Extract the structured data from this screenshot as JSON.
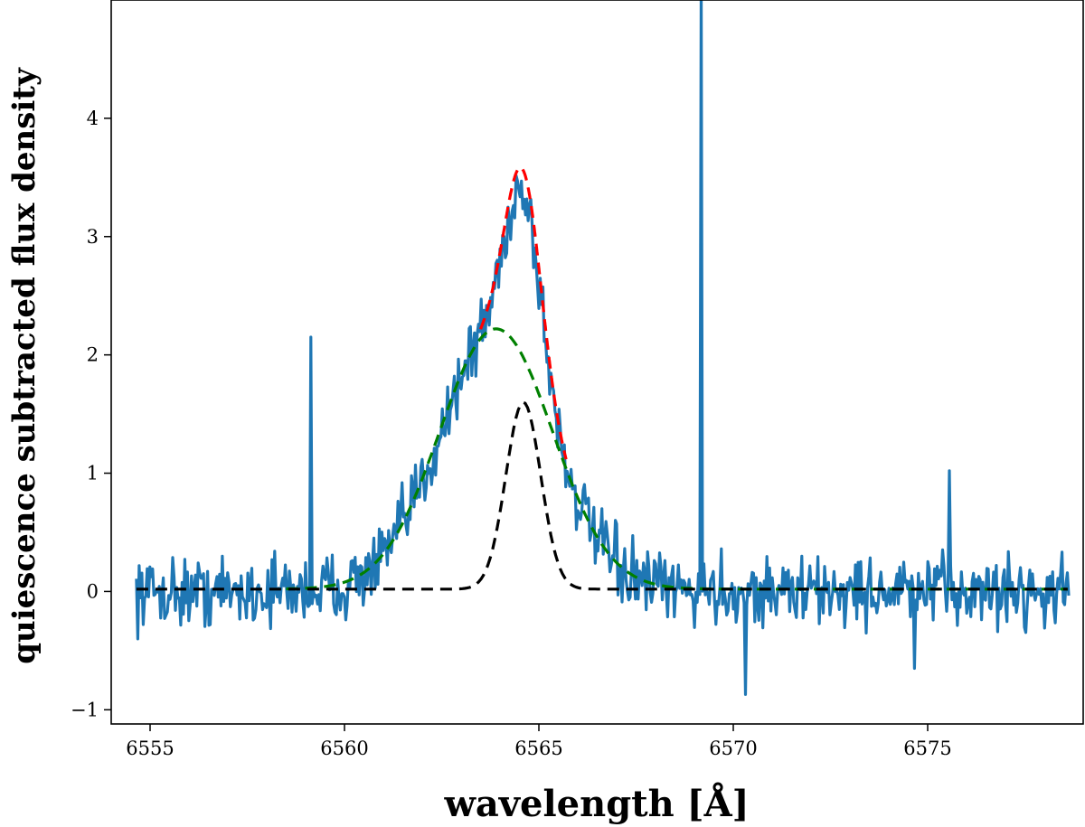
{
  "chart_data": {
    "type": "line",
    "title": "",
    "xlabel": "wavelength [Å]",
    "ylabel": "quiescence subtracted flux density",
    "xlim": [
      6554.0,
      6579.0
    ],
    "ylim": [
      -1.12,
      5.0
    ],
    "xticks": [
      6555,
      6560,
      6565,
      6570,
      6575
    ],
    "yticks": [
      -1,
      0,
      1,
      2,
      3,
      4
    ],
    "xtick_labels": [
      "6555",
      "6560",
      "6565",
      "6570",
      "6575"
    ],
    "ytick_labels": [
      "−1",
      "0",
      "1",
      "2",
      "3",
      "4"
    ],
    "grid": false,
    "legend": "none",
    "observed": {
      "color": "#1f77b4",
      "x_start": 6554.65,
      "x_step": 0.0345,
      "n_points": 696,
      "noise_amplitude": 0.22,
      "spikes": [
        {
          "x": 6559.12,
          "y": 2.15
        },
        {
          "x": 6569.18,
          "y": 5.2
        },
        {
          "x": 6575.55,
          "y": 1.02
        },
        {
          "x": 6570.32,
          "y": -0.87
        },
        {
          "x": 6574.65,
          "y": -0.65
        }
      ],
      "components": {
        "broad": {
          "amp": 2.2,
          "center": 6563.9,
          "sigma": 1.45
        },
        "narrow": {
          "amp": 1.42,
          "center": 6564.6,
          "sigma": 0.45
        }
      }
    },
    "series": [
      {
        "color": "#ff0000",
        "style": "dashed",
        "x_range": [
          6563.5,
          6565.7
        ],
        "model": "sum",
        "offset": 0.02,
        "components": [
          {
            "amp": 2.2,
            "center": 6563.9,
            "sigma": 1.45
          },
          {
            "amp": 1.58,
            "center": 6564.6,
            "sigma": 0.45
          }
        ]
      },
      {
        "color": "#008000",
        "style": "dashed",
        "x_range": [
          6558.5,
          6578.6
        ],
        "model": "gaussian",
        "offset": 0.02,
        "components": [
          {
            "amp": 2.2,
            "center": 6563.9,
            "sigma": 1.45
          }
        ]
      },
      {
        "color": "#000000",
        "style": "dashed",
        "x_range": [
          6554.65,
          6578.6
        ],
        "model": "gaussian",
        "offset": 0.02,
        "components": [
          {
            "amp": 1.58,
            "center": 6564.6,
            "sigma": 0.45
          }
        ]
      }
    ]
  }
}
